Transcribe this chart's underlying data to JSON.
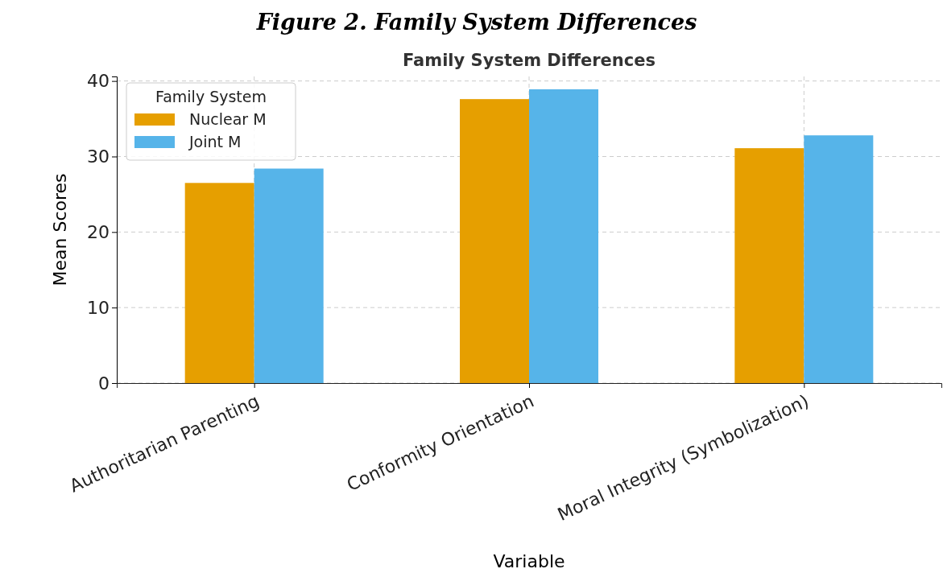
{
  "chart_data": {
    "type": "bar",
    "title": "Family System Differences",
    "subtitle": "Figure 2. Family System Differences",
    "xlabel": "Variable",
    "ylabel": "Mean Scores",
    "legend_title": "Family System",
    "categories": [
      "Authoritarian Parenting",
      "Conformity Orientation",
      "Moral Integrity (Symbolization)"
    ],
    "series": [
      {
        "name": "Nuclear M",
        "color": "#e69f00",
        "values": [
          26.5,
          37.6,
          31.1
        ]
      },
      {
        "name": "Joint M",
        "color": "#56b4e9",
        "values": [
          28.4,
          38.9,
          32.8
        ]
      }
    ],
    "ylim": [
      0,
      40.6
    ],
    "yticks": [
      0,
      10,
      20,
      30,
      40
    ],
    "grid": true,
    "legend": "top left"
  }
}
